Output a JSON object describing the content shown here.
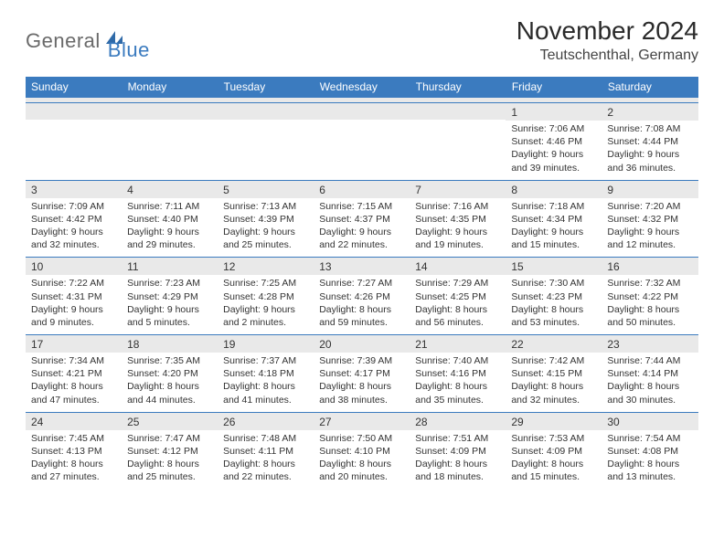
{
  "logo": {
    "word1": "General",
    "word2": "Blue"
  },
  "title": "November 2024",
  "location": "Teutschenthal, Germany",
  "header_bg": "#3b7bbf",
  "header_fg": "#ffffff",
  "daynum_bg": "#e9e9e9",
  "rule_color": "#3b7bbf",
  "text_color": "#333333",
  "font_family": "Arial, Helvetica, sans-serif",
  "daynum_fontsize": 12,
  "daytext_fontsize": 10.5,
  "weekdays": [
    "Sunday",
    "Monday",
    "Tuesday",
    "Wednesday",
    "Thursday",
    "Friday",
    "Saturday"
  ],
  "weeks": [
    [
      {
        "day": "",
        "sunrise": "",
        "sunset": "",
        "daylight_l1": "",
        "daylight_l2": ""
      },
      {
        "day": "",
        "sunrise": "",
        "sunset": "",
        "daylight_l1": "",
        "daylight_l2": ""
      },
      {
        "day": "",
        "sunrise": "",
        "sunset": "",
        "daylight_l1": "",
        "daylight_l2": ""
      },
      {
        "day": "",
        "sunrise": "",
        "sunset": "",
        "daylight_l1": "",
        "daylight_l2": ""
      },
      {
        "day": "",
        "sunrise": "",
        "sunset": "",
        "daylight_l1": "",
        "daylight_l2": ""
      },
      {
        "day": "1",
        "sunrise": "Sunrise: 7:06 AM",
        "sunset": "Sunset: 4:46 PM",
        "daylight_l1": "Daylight: 9 hours",
        "daylight_l2": "and 39 minutes."
      },
      {
        "day": "2",
        "sunrise": "Sunrise: 7:08 AM",
        "sunset": "Sunset: 4:44 PM",
        "daylight_l1": "Daylight: 9 hours",
        "daylight_l2": "and 36 minutes."
      }
    ],
    [
      {
        "day": "3",
        "sunrise": "Sunrise: 7:09 AM",
        "sunset": "Sunset: 4:42 PM",
        "daylight_l1": "Daylight: 9 hours",
        "daylight_l2": "and 32 minutes."
      },
      {
        "day": "4",
        "sunrise": "Sunrise: 7:11 AM",
        "sunset": "Sunset: 4:40 PM",
        "daylight_l1": "Daylight: 9 hours",
        "daylight_l2": "and 29 minutes."
      },
      {
        "day": "5",
        "sunrise": "Sunrise: 7:13 AM",
        "sunset": "Sunset: 4:39 PM",
        "daylight_l1": "Daylight: 9 hours",
        "daylight_l2": "and 25 minutes."
      },
      {
        "day": "6",
        "sunrise": "Sunrise: 7:15 AM",
        "sunset": "Sunset: 4:37 PM",
        "daylight_l1": "Daylight: 9 hours",
        "daylight_l2": "and 22 minutes."
      },
      {
        "day": "7",
        "sunrise": "Sunrise: 7:16 AM",
        "sunset": "Sunset: 4:35 PM",
        "daylight_l1": "Daylight: 9 hours",
        "daylight_l2": "and 19 minutes."
      },
      {
        "day": "8",
        "sunrise": "Sunrise: 7:18 AM",
        "sunset": "Sunset: 4:34 PM",
        "daylight_l1": "Daylight: 9 hours",
        "daylight_l2": "and 15 minutes."
      },
      {
        "day": "9",
        "sunrise": "Sunrise: 7:20 AM",
        "sunset": "Sunset: 4:32 PM",
        "daylight_l1": "Daylight: 9 hours",
        "daylight_l2": "and 12 minutes."
      }
    ],
    [
      {
        "day": "10",
        "sunrise": "Sunrise: 7:22 AM",
        "sunset": "Sunset: 4:31 PM",
        "daylight_l1": "Daylight: 9 hours",
        "daylight_l2": "and 9 minutes."
      },
      {
        "day": "11",
        "sunrise": "Sunrise: 7:23 AM",
        "sunset": "Sunset: 4:29 PM",
        "daylight_l1": "Daylight: 9 hours",
        "daylight_l2": "and 5 minutes."
      },
      {
        "day": "12",
        "sunrise": "Sunrise: 7:25 AM",
        "sunset": "Sunset: 4:28 PM",
        "daylight_l1": "Daylight: 9 hours",
        "daylight_l2": "and 2 minutes."
      },
      {
        "day": "13",
        "sunrise": "Sunrise: 7:27 AM",
        "sunset": "Sunset: 4:26 PM",
        "daylight_l1": "Daylight: 8 hours",
        "daylight_l2": "and 59 minutes."
      },
      {
        "day": "14",
        "sunrise": "Sunrise: 7:29 AM",
        "sunset": "Sunset: 4:25 PM",
        "daylight_l1": "Daylight: 8 hours",
        "daylight_l2": "and 56 minutes."
      },
      {
        "day": "15",
        "sunrise": "Sunrise: 7:30 AM",
        "sunset": "Sunset: 4:23 PM",
        "daylight_l1": "Daylight: 8 hours",
        "daylight_l2": "and 53 minutes."
      },
      {
        "day": "16",
        "sunrise": "Sunrise: 7:32 AM",
        "sunset": "Sunset: 4:22 PM",
        "daylight_l1": "Daylight: 8 hours",
        "daylight_l2": "and 50 minutes."
      }
    ],
    [
      {
        "day": "17",
        "sunrise": "Sunrise: 7:34 AM",
        "sunset": "Sunset: 4:21 PM",
        "daylight_l1": "Daylight: 8 hours",
        "daylight_l2": "and 47 minutes."
      },
      {
        "day": "18",
        "sunrise": "Sunrise: 7:35 AM",
        "sunset": "Sunset: 4:20 PM",
        "daylight_l1": "Daylight: 8 hours",
        "daylight_l2": "and 44 minutes."
      },
      {
        "day": "19",
        "sunrise": "Sunrise: 7:37 AM",
        "sunset": "Sunset: 4:18 PM",
        "daylight_l1": "Daylight: 8 hours",
        "daylight_l2": "and 41 minutes."
      },
      {
        "day": "20",
        "sunrise": "Sunrise: 7:39 AM",
        "sunset": "Sunset: 4:17 PM",
        "daylight_l1": "Daylight: 8 hours",
        "daylight_l2": "and 38 minutes."
      },
      {
        "day": "21",
        "sunrise": "Sunrise: 7:40 AM",
        "sunset": "Sunset: 4:16 PM",
        "daylight_l1": "Daylight: 8 hours",
        "daylight_l2": "and 35 minutes."
      },
      {
        "day": "22",
        "sunrise": "Sunrise: 7:42 AM",
        "sunset": "Sunset: 4:15 PM",
        "daylight_l1": "Daylight: 8 hours",
        "daylight_l2": "and 32 minutes."
      },
      {
        "day": "23",
        "sunrise": "Sunrise: 7:44 AM",
        "sunset": "Sunset: 4:14 PM",
        "daylight_l1": "Daylight: 8 hours",
        "daylight_l2": "and 30 minutes."
      }
    ],
    [
      {
        "day": "24",
        "sunrise": "Sunrise: 7:45 AM",
        "sunset": "Sunset: 4:13 PM",
        "daylight_l1": "Daylight: 8 hours",
        "daylight_l2": "and 27 minutes."
      },
      {
        "day": "25",
        "sunrise": "Sunrise: 7:47 AM",
        "sunset": "Sunset: 4:12 PM",
        "daylight_l1": "Daylight: 8 hours",
        "daylight_l2": "and 25 minutes."
      },
      {
        "day": "26",
        "sunrise": "Sunrise: 7:48 AM",
        "sunset": "Sunset: 4:11 PM",
        "daylight_l1": "Daylight: 8 hours",
        "daylight_l2": "and 22 minutes."
      },
      {
        "day": "27",
        "sunrise": "Sunrise: 7:50 AM",
        "sunset": "Sunset: 4:10 PM",
        "daylight_l1": "Daylight: 8 hours",
        "daylight_l2": "and 20 minutes."
      },
      {
        "day": "28",
        "sunrise": "Sunrise: 7:51 AM",
        "sunset": "Sunset: 4:09 PM",
        "daylight_l1": "Daylight: 8 hours",
        "daylight_l2": "and 18 minutes."
      },
      {
        "day": "29",
        "sunrise": "Sunrise: 7:53 AM",
        "sunset": "Sunset: 4:09 PM",
        "daylight_l1": "Daylight: 8 hours",
        "daylight_l2": "and 15 minutes."
      },
      {
        "day": "30",
        "sunrise": "Sunrise: 7:54 AM",
        "sunset": "Sunset: 4:08 PM",
        "daylight_l1": "Daylight: 8 hours",
        "daylight_l2": "and 13 minutes."
      }
    ]
  ]
}
